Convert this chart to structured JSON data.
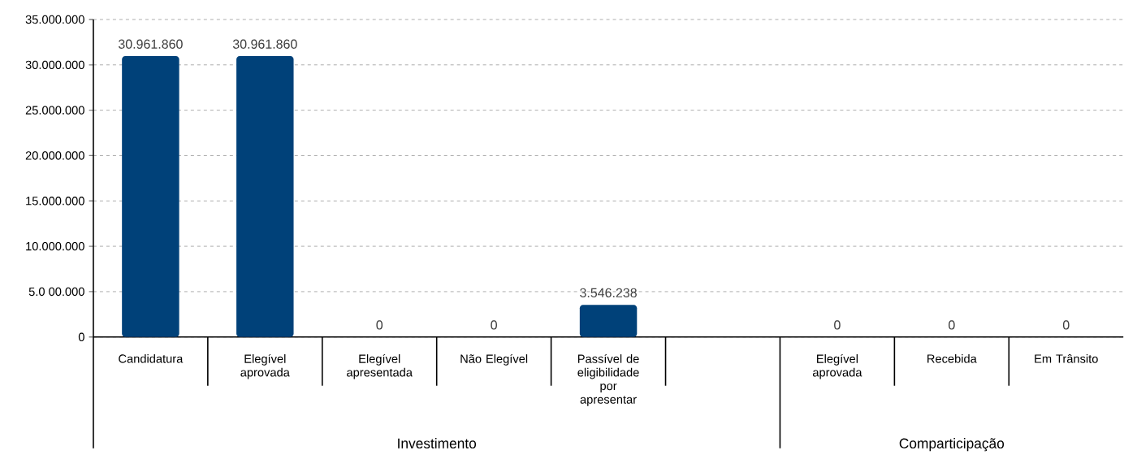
{
  "chart_data": {
    "type": "bar",
    "categories": [
      "Candidatura",
      "Elegível aprovada",
      "Elegível apresentada",
      "Não Elegível",
      "Passível de eligibilidade por apresentar",
      null,
      "Elegível aprovada",
      "Recebida",
      "Em Trânsito"
    ],
    "values": [
      30961860,
      30961860,
      0,
      0,
      3546238,
      null,
      0,
      0,
      0
    ],
    "value_labels": [
      "30.961.860",
      "30.961.860",
      "0",
      "0",
      "3.546.238",
      null,
      "0",
      "0",
      "0"
    ],
    "color": "#004179",
    "ylim": [
      0,
      35000000
    ],
    "yticks": [
      0,
      {
        "value": 5000000,
        "label": "5.0 00.000"
      },
      {
        "value": 10000000,
        "label": "10.000.000"
      },
      {
        "value": 15000000,
        "label": "15.000.000"
      },
      {
        "value": 20000000,
        "label": "20.000.000"
      },
      {
        "value": 25000000,
        "label": "25.000.000"
      },
      {
        "value": 30000000,
        "label": "30.000.000"
      },
      {
        "value": 35000000,
        "label": "35.000.000"
      }
    ],
    "grid": "y",
    "annotations": [
      "Investimento",
      "Comparticipação"
    ]
  }
}
